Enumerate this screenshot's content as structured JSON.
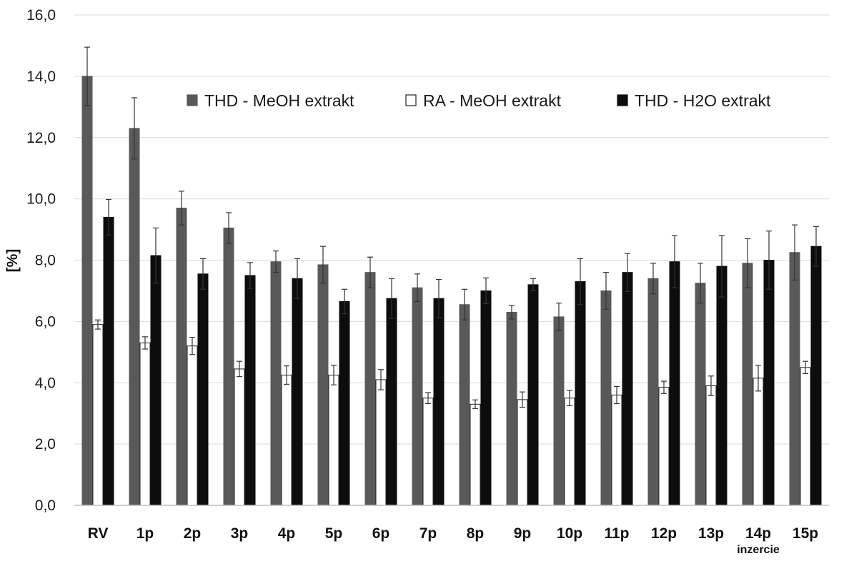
{
  "chart_data": {
    "type": "bar",
    "title": "",
    "xlabel": "",
    "ylabel": "[%]",
    "ylim": [
      0,
      16
    ],
    "ytick_step": 2,
    "ytick_labels": [
      "0,0",
      "2,0",
      "4,0",
      "6,0",
      "8,0",
      "10,0",
      "12,0",
      "14,0",
      "16,0"
    ],
    "grid": "horizontal",
    "legend_position": "top-center",
    "categories": [
      "RV",
      "1p",
      "2p",
      "3p",
      "4p",
      "5p",
      "6p",
      "7p",
      "8p",
      "9p",
      "10p",
      "11p",
      "12p",
      "13p",
      "14p",
      "15p"
    ],
    "annotation": {
      "category": "14p",
      "text": "inzercie"
    },
    "series": [
      {
        "name": "THD - MeOH extrakt",
        "color": "#595959",
        "edge": "#595959",
        "values": [
          14.0,
          12.3,
          9.7,
          9.05,
          7.95,
          7.85,
          7.6,
          7.1,
          6.55,
          6.3,
          6.15,
          7.0,
          7.4,
          7.25,
          7.9,
          8.25
        ],
        "errors": [
          0.95,
          1.0,
          0.55,
          0.5,
          0.35,
          0.6,
          0.5,
          0.45,
          0.5,
          0.22,
          0.45,
          0.6,
          0.5,
          0.65,
          0.8,
          0.9
        ]
      },
      {
        "name": "RA - MeOH extrakt",
        "color": "#ffffff",
        "edge": "#222222",
        "values": [
          5.9,
          5.3,
          5.2,
          4.45,
          4.25,
          4.25,
          4.1,
          3.5,
          3.3,
          3.45,
          3.5,
          3.6,
          3.85,
          3.9,
          4.15,
          4.5
        ],
        "errors": [
          0.15,
          0.2,
          0.28,
          0.25,
          0.3,
          0.32,
          0.33,
          0.18,
          0.14,
          0.25,
          0.25,
          0.28,
          0.2,
          0.32,
          0.42,
          0.2
        ]
      },
      {
        "name": "THD - H2O extrakt",
        "color": "#0d0d0d",
        "edge": "#0d0d0d",
        "values": [
          9.4,
          8.15,
          7.55,
          7.5,
          7.4,
          6.65,
          6.75,
          6.75,
          7.0,
          7.2,
          7.3,
          7.6,
          7.95,
          7.8,
          8.0,
          8.45
        ],
        "errors": [
          0.58,
          0.9,
          0.5,
          0.42,
          0.65,
          0.4,
          0.65,
          0.62,
          0.42,
          0.2,
          0.75,
          0.62,
          0.85,
          1.0,
          0.95,
          0.65
        ]
      }
    ]
  }
}
